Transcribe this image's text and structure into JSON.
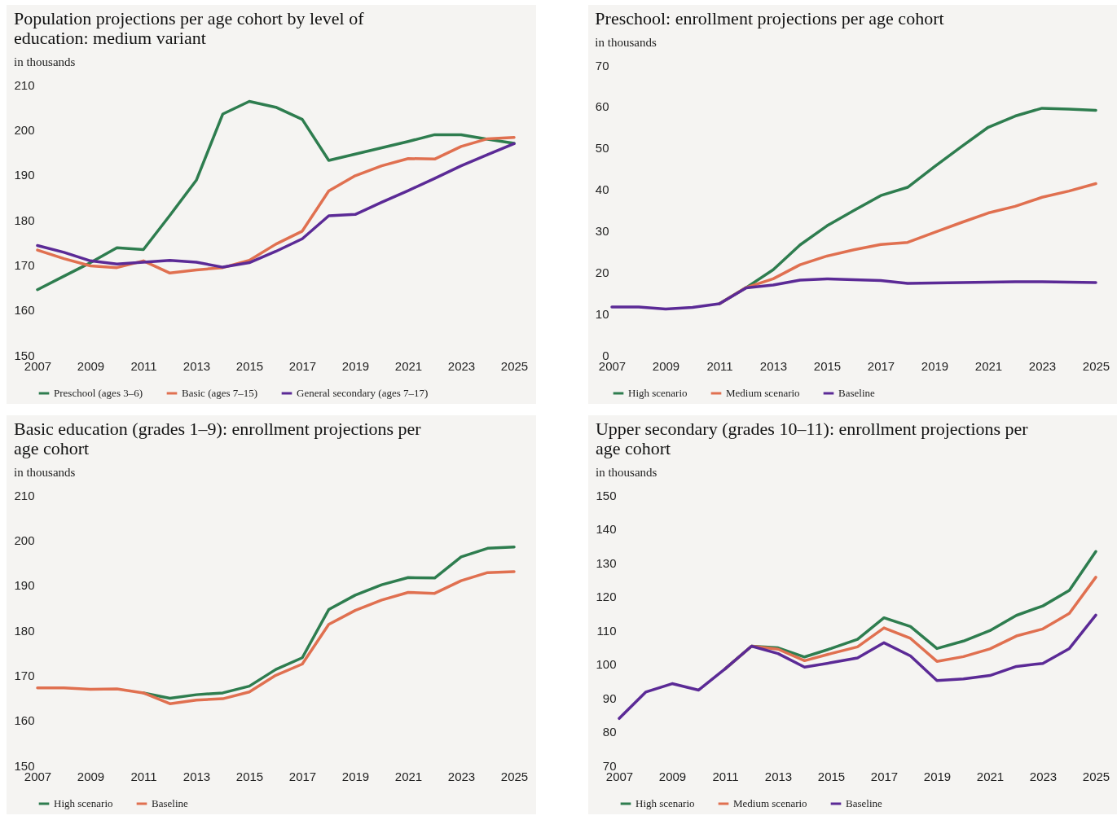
{
  "chart_data": [
    {
      "type": "line",
      "title": "Population projections per age cohort by level of education: medium variant",
      "subtitle": "in thousands",
      "x": [
        2007,
        2008,
        2009,
        2010,
        2011,
        2012,
        2013,
        2014,
        2015,
        2016,
        2017,
        2018,
        2019,
        2020,
        2021,
        2022,
        2023,
        2024,
        2025
      ],
      "xlim": [
        2007,
        2025
      ],
      "xticks": [
        2007,
        2009,
        2011,
        2013,
        2015,
        2017,
        2019,
        2021,
        2023,
        2025
      ],
      "ylim": [
        150,
        210
      ],
      "yticks": [
        150,
        160,
        170,
        180,
        190,
        200,
        210
      ],
      "legend": "bottom",
      "line_style": "solid",
      "series": [
        {
          "name": "Preschool (ages 3–6)",
          "color": "#2e7d4f",
          "values": [
            164.5,
            167.5,
            170.5,
            173.8,
            173.4,
            181,
            188.8,
            203.5,
            206.3,
            205,
            202.3,
            193.2,
            194.6,
            196,
            197.4,
            198.9,
            198.9,
            197.9,
            197
          ]
        },
        {
          "name": "Basic (ages 7–15)",
          "color": "#e07050",
          "values": [
            173.3,
            171.4,
            169.8,
            169.4,
            170.9,
            168.2,
            168.9,
            169.4,
            171,
            174.6,
            177.5,
            186.4,
            189.8,
            192,
            193.6,
            193.5,
            196.3,
            198,
            198.3
          ]
        },
        {
          "name": "General secondary (ages 7–17)",
          "color": "#5b2a96",
          "values": [
            174.3,
            172.8,
            170.9,
            170.2,
            170.6,
            171,
            170.6,
            169.5,
            170.5,
            173,
            175.8,
            180.9,
            181.2,
            183.9,
            186.5,
            189.2,
            192,
            194.5,
            196.9
          ]
        }
      ]
    },
    {
      "type": "line",
      "title": "Preschool: enrollment projections per age cohort",
      "subtitle": "in thousands",
      "x": [
        2007,
        2008,
        2009,
        2010,
        2011,
        2012,
        2013,
        2014,
        2015,
        2016,
        2017,
        2018,
        2019,
        2020,
        2021,
        2022,
        2023,
        2024,
        2025
      ],
      "xlim": [
        2007,
        2025
      ],
      "xticks": [
        2007,
        2009,
        2011,
        2013,
        2015,
        2017,
        2019,
        2021,
        2023,
        2025
      ],
      "ylim": [
        0,
        70
      ],
      "yticks": [
        0,
        10,
        20,
        30,
        40,
        50,
        60,
        70
      ],
      "legend": "bottom",
      "line_style": "solid",
      "series": [
        {
          "name": "High scenario",
          "color": "#2e7d4f",
          "values": [
            null,
            null,
            null,
            null,
            12.4,
            16.3,
            20.6,
            26.6,
            31.2,
            34.9,
            38.5,
            40.5,
            45.5,
            50.3,
            55,
            57.7,
            59.6,
            59.4,
            59.1
          ]
        },
        {
          "name": "Medium scenario",
          "color": "#e07050",
          "values": [
            null,
            null,
            null,
            null,
            12.4,
            16.3,
            18.4,
            21.8,
            23.9,
            25.4,
            26.7,
            27.2,
            29.6,
            32,
            34.3,
            35.9,
            38.1,
            39.6,
            41.4
          ]
        },
        {
          "name": "Baseline",
          "color": "#5b2a96",
          "values": [
            11.6,
            11.6,
            11.1,
            11.5,
            12.4,
            16.2,
            16.9,
            18.1,
            18.4,
            18.2,
            18,
            17.3,
            17.4,
            17.5,
            17.6,
            17.7,
            17.7,
            17.6,
            17.5
          ]
        }
      ]
    },
    {
      "type": "line",
      "title": "Basic education (grades 1–9): enrollment projections per age cohort",
      "subtitle": "in thousands",
      "x": [
        2007,
        2008,
        2009,
        2010,
        2011,
        2012,
        2013,
        2014,
        2015,
        2016,
        2017,
        2018,
        2019,
        2020,
        2021,
        2022,
        2023,
        2024,
        2025
      ],
      "xlim": [
        2007,
        2025
      ],
      "xticks": [
        2007,
        2009,
        2011,
        2013,
        2015,
        2017,
        2019,
        2021,
        2023,
        2025
      ],
      "ylim": [
        150,
        210
      ],
      "yticks": [
        150,
        160,
        170,
        180,
        190,
        200,
        210
      ],
      "legend": "bottom",
      "line_style": "solid",
      "series": [
        {
          "name": "High scenario",
          "color": "#2e7d4f",
          "values": [
            null,
            null,
            null,
            null,
            166.1,
            164.9,
            165.7,
            166.1,
            167.6,
            171.3,
            173.9,
            184.6,
            187.8,
            190.1,
            191.7,
            191.6,
            196.3,
            198.2,
            198.5
          ]
        },
        {
          "name": "Baseline",
          "color": "#e07050",
          "values": [
            167.2,
            167.2,
            166.9,
            167,
            166.1,
            163.7,
            164.5,
            164.8,
            166.3,
            170,
            172.5,
            181.3,
            184.4,
            186.7,
            188.4,
            188.2,
            191,
            192.8,
            193
          ]
        }
      ]
    },
    {
      "type": "line",
      "title": "Upper secondary (grades 10–11): enrollment projections per age cohort",
      "subtitle": "in thousands",
      "x": [
        2007,
        2008,
        2009,
        2010,
        2011,
        2012,
        2013,
        2014,
        2015,
        2016,
        2017,
        2018,
        2019,
        2020,
        2021,
        2022,
        2023,
        2024,
        2025
      ],
      "xlim": [
        2007,
        2025
      ],
      "xticks": [
        2007,
        2009,
        2011,
        2013,
        2015,
        2017,
        2019,
        2021,
        2023,
        2025
      ],
      "ylim": [
        70,
        150
      ],
      "yticks": [
        70,
        80,
        90,
        100,
        110,
        120,
        130,
        140,
        150
      ],
      "legend": "bottom",
      "line_style": "solid",
      "series": [
        {
          "name": "High scenario",
          "color": "#2e7d4f",
          "values": [
            null,
            null,
            null,
            null,
            98.6,
            105.3,
            104.8,
            102.1,
            104.6,
            107.3,
            113.7,
            111.1,
            104.6,
            106.8,
            109.9,
            114.4,
            117.2,
            121.8,
            133.3
          ]
        },
        {
          "name": "Medium scenario",
          "color": "#e07050",
          "values": [
            null,
            null,
            null,
            null,
            98.6,
            105.3,
            104.4,
            101,
            103.1,
            105.1,
            110.7,
            107.6,
            100.8,
            102.2,
            104.5,
            108.3,
            110.4,
            115,
            125.7
          ]
        },
        {
          "name": "Baseline",
          "color": "#5b2a96",
          "values": [
            83.9,
            91.7,
            94.2,
            92.3,
            98.6,
            105.3,
            103.1,
            99.1,
            100.4,
            101.8,
            106.3,
            102.4,
            95.1,
            95.6,
            96.6,
            99.3,
            100.2,
            104.6,
            114.5
          ]
        }
      ]
    }
  ]
}
